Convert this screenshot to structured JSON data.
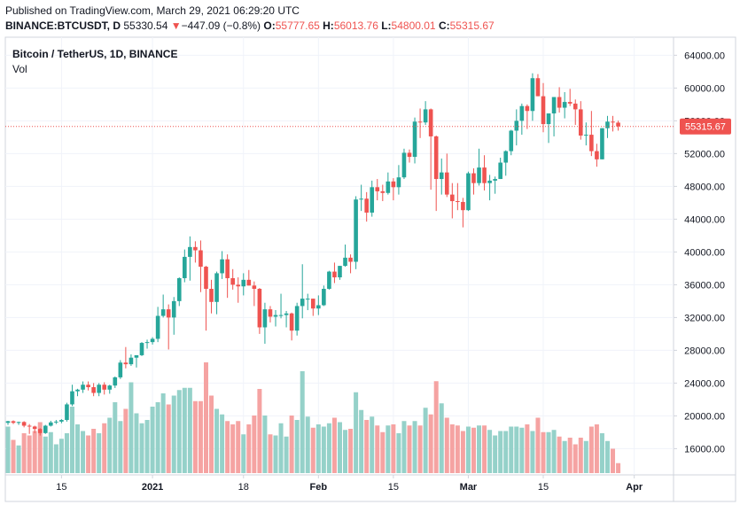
{
  "header": {
    "published": "Published on TradingView.com, March 29, 2021 06:29:20 UTC",
    "symbol": "BINANCE:BTCUSDT, D",
    "last": "55330.54",
    "change": "−447.09 (−0.8%)",
    "o_label": "O:",
    "o_value": "55777.65",
    "h_label": "H:",
    "h_value": "56013.76",
    "l_label": "L:",
    "l_value": "54800.01",
    "c_label": "C:",
    "c_value": "55315.67",
    "down_arrow": "▼"
  },
  "chart_title": "Bitcoin / TetherUS, 1D, BINANCE",
  "vol_label": "Vol",
  "colors": {
    "up": "#26a69a",
    "down": "#ef5350",
    "up_vol": "#95d1c9",
    "down_vol": "#f5a3a2",
    "last_price_line": "#ef5350",
    "grid": "#f0f3fa"
  },
  "chart_data": {
    "type": "candlestick",
    "y_range": [
      12800,
      66200
    ],
    "y_ticks": [
      "64000.00",
      "60000.00",
      "56000.00",
      "52000.00",
      "48000.00",
      "44000.00",
      "40000.00",
      "36000.00",
      "32000.00",
      "28000.00",
      "24000.00",
      "20000.00",
      "16000.00"
    ],
    "y_tick_values": [
      64000,
      60000,
      56000,
      52000,
      48000,
      44000,
      40000,
      36000,
      32000,
      28000,
      24000,
      20000,
      16000
    ],
    "x_ticks": [
      {
        "label": "15",
        "date": "2020-12-15",
        "bold": false
      },
      {
        "label": "2021",
        "date": "2021-01-01",
        "bold": true
      },
      {
        "label": "18",
        "date": "2021-01-18",
        "bold": false
      },
      {
        "label": "Feb",
        "date": "2021-02-01",
        "bold": true
      },
      {
        "label": "15",
        "date": "2021-02-15",
        "bold": false
      },
      {
        "label": "Mar",
        "date": "2021-03-01",
        "bold": true
      },
      {
        "label": "15",
        "date": "2021-03-15",
        "bold": false
      },
      {
        "label": "Apr",
        "date": "2021-04-01",
        "bold": true
      }
    ],
    "last_price": 55315.67,
    "last_price_label": "55315.67",
    "candles": [
      {
        "date": "2020-12-05",
        "o": 19150,
        "h": 19400,
        "l": 18900,
        "c": 19350
      },
      {
        "date": "2020-12-06",
        "o": 19350,
        "h": 19450,
        "l": 19000,
        "c": 19150
      },
      {
        "date": "2020-12-07",
        "o": 19150,
        "h": 19300,
        "l": 18900,
        "c": 19250
      },
      {
        "date": "2020-12-08",
        "o": 19250,
        "h": 19350,
        "l": 18600,
        "c": 18800
      },
      {
        "date": "2020-12-09",
        "o": 18800,
        "h": 19000,
        "l": 17800,
        "c": 18700
      },
      {
        "date": "2020-12-10",
        "o": 18700,
        "h": 18800,
        "l": 17900,
        "c": 18400
      },
      {
        "date": "2020-12-11",
        "o": 18400,
        "h": 18500,
        "l": 17600,
        "c": 17900
      },
      {
        "date": "2020-12-12",
        "o": 17900,
        "h": 18900,
        "l": 17800,
        "c": 18800
      },
      {
        "date": "2020-12-13",
        "o": 18800,
        "h": 19400,
        "l": 18700,
        "c": 19200
      },
      {
        "date": "2020-12-14",
        "o": 19200,
        "h": 19500,
        "l": 19000,
        "c": 19300
      },
      {
        "date": "2020-12-15",
        "o": 19300,
        "h": 19600,
        "l": 19100,
        "c": 19500
      },
      {
        "date": "2020-12-16",
        "o": 19500,
        "h": 21600,
        "l": 19300,
        "c": 21400
      },
      {
        "date": "2020-12-17",
        "o": 21400,
        "h": 23800,
        "l": 21200,
        "c": 23000
      },
      {
        "date": "2020-12-18",
        "o": 23000,
        "h": 23300,
        "l": 22400,
        "c": 23200
      },
      {
        "date": "2020-12-19",
        "o": 23200,
        "h": 24200,
        "l": 22800,
        "c": 23800
      },
      {
        "date": "2020-12-20",
        "o": 23800,
        "h": 24200,
        "l": 23100,
        "c": 23500
      },
      {
        "date": "2020-12-21",
        "o": 23500,
        "h": 24000,
        "l": 22400,
        "c": 22800
      },
      {
        "date": "2020-12-22",
        "o": 22800,
        "h": 24000,
        "l": 22400,
        "c": 23800
      },
      {
        "date": "2020-12-23",
        "o": 23800,
        "h": 24100,
        "l": 22600,
        "c": 23200
      },
      {
        "date": "2020-12-24",
        "o": 23200,
        "h": 23800,
        "l": 22700,
        "c": 23700
      },
      {
        "date": "2020-12-25",
        "o": 23700,
        "h": 24800,
        "l": 23400,
        "c": 24700
      },
      {
        "date": "2020-12-26",
        "o": 24700,
        "h": 26800,
        "l": 24500,
        "c": 26500
      },
      {
        "date": "2020-12-27",
        "o": 26500,
        "h": 28400,
        "l": 25800,
        "c": 26300
      },
      {
        "date": "2020-12-28",
        "o": 26300,
        "h": 27500,
        "l": 26100,
        "c": 27100
      },
      {
        "date": "2020-12-29",
        "o": 27100,
        "h": 27400,
        "l": 25900,
        "c": 27400
      },
      {
        "date": "2020-12-30",
        "o": 27400,
        "h": 29000,
        "l": 27300,
        "c": 28900
      },
      {
        "date": "2020-12-31",
        "o": 28900,
        "h": 29300,
        "l": 28200,
        "c": 29000
      },
      {
        "date": "2021-01-01",
        "o": 29000,
        "h": 29600,
        "l": 28700,
        "c": 29400
      },
      {
        "date": "2021-01-02",
        "o": 29400,
        "h": 33300,
        "l": 29000,
        "c": 32200
      },
      {
        "date": "2021-01-03",
        "o": 32200,
        "h": 34800,
        "l": 32000,
        "c": 33000
      },
      {
        "date": "2021-01-04",
        "o": 33000,
        "h": 33600,
        "l": 28100,
        "c": 32000
      },
      {
        "date": "2021-01-05",
        "o": 32000,
        "h": 34500,
        "l": 29900,
        "c": 34000
      },
      {
        "date": "2021-01-06",
        "o": 34000,
        "h": 36900,
        "l": 33400,
        "c": 36800
      },
      {
        "date": "2021-01-07",
        "o": 36800,
        "h": 40300,
        "l": 36300,
        "c": 39400
      },
      {
        "date": "2021-01-08",
        "o": 39400,
        "h": 41900,
        "l": 36500,
        "c": 40600
      },
      {
        "date": "2021-01-09",
        "o": 40600,
        "h": 41300,
        "l": 38700,
        "c": 40200
      },
      {
        "date": "2021-01-10",
        "o": 40200,
        "h": 41400,
        "l": 35100,
        "c": 38200
      },
      {
        "date": "2021-01-11",
        "o": 38200,
        "h": 38300,
        "l": 30400,
        "c": 35500
      },
      {
        "date": "2021-01-12",
        "o": 35500,
        "h": 36600,
        "l": 32500,
        "c": 33900
      },
      {
        "date": "2021-01-13",
        "o": 33900,
        "h": 37600,
        "l": 32400,
        "c": 37400
      },
      {
        "date": "2021-01-14",
        "o": 37400,
        "h": 40100,
        "l": 36700,
        "c": 39100
      },
      {
        "date": "2021-01-15",
        "o": 39100,
        "h": 39700,
        "l": 34400,
        "c": 36800
      },
      {
        "date": "2021-01-16",
        "o": 36800,
        "h": 37900,
        "l": 35400,
        "c": 36000
      },
      {
        "date": "2021-01-17",
        "o": 36000,
        "h": 36900,
        "l": 33800,
        "c": 35800
      },
      {
        "date": "2021-01-18",
        "o": 35800,
        "h": 37400,
        "l": 34700,
        "c": 36600
      },
      {
        "date": "2021-01-19",
        "o": 36600,
        "h": 37800,
        "l": 35900,
        "c": 35900
      },
      {
        "date": "2021-01-20",
        "o": 35900,
        "h": 36400,
        "l": 33400,
        "c": 35500
      },
      {
        "date": "2021-01-21",
        "o": 35500,
        "h": 35600,
        "l": 30000,
        "c": 30800
      },
      {
        "date": "2021-01-22",
        "o": 30800,
        "h": 33800,
        "l": 28800,
        "c": 33000
      },
      {
        "date": "2021-01-23",
        "o": 33000,
        "h": 33400,
        "l": 31400,
        "c": 32100
      },
      {
        "date": "2021-01-24",
        "o": 32100,
        "h": 32900,
        "l": 30900,
        "c": 32300
      },
      {
        "date": "2021-01-25",
        "o": 32300,
        "h": 34900,
        "l": 31900,
        "c": 32300
      },
      {
        "date": "2021-01-26",
        "o": 32300,
        "h": 32800,
        "l": 30800,
        "c": 32500
      },
      {
        "date": "2021-01-27",
        "o": 32500,
        "h": 32600,
        "l": 29200,
        "c": 30400
      },
      {
        "date": "2021-01-28",
        "o": 30400,
        "h": 33800,
        "l": 29800,
        "c": 33400
      },
      {
        "date": "2021-01-29",
        "o": 33400,
        "h": 38500,
        "l": 31900,
        "c": 34300
      },
      {
        "date": "2021-01-30",
        "o": 34300,
        "h": 34900,
        "l": 32900,
        "c": 34300
      },
      {
        "date": "2021-01-31",
        "o": 34300,
        "h": 34300,
        "l": 32200,
        "c": 33100
      },
      {
        "date": "2021-02-01",
        "o": 33100,
        "h": 34700,
        "l": 32300,
        "c": 33500
      },
      {
        "date": "2021-02-02",
        "o": 33500,
        "h": 35900,
        "l": 33400,
        "c": 35500
      },
      {
        "date": "2021-02-03",
        "o": 35500,
        "h": 37700,
        "l": 35400,
        "c": 37600
      },
      {
        "date": "2021-02-04",
        "o": 37600,
        "h": 38700,
        "l": 36200,
        "c": 36900
      },
      {
        "date": "2021-02-05",
        "o": 36900,
        "h": 38300,
        "l": 36600,
        "c": 38300
      },
      {
        "date": "2021-02-06",
        "o": 38300,
        "h": 40900,
        "l": 38200,
        "c": 39300
      },
      {
        "date": "2021-02-07",
        "o": 39300,
        "h": 39700,
        "l": 37400,
        "c": 38800
      },
      {
        "date": "2021-02-08",
        "o": 38800,
        "h": 46800,
        "l": 37900,
        "c": 46400
      },
      {
        "date": "2021-02-09",
        "o": 46400,
        "h": 48200,
        "l": 45000,
        "c": 46500
      },
      {
        "date": "2021-02-10",
        "o": 46500,
        "h": 47300,
        "l": 43700,
        "c": 44800
      },
      {
        "date": "2021-02-11",
        "o": 44800,
        "h": 48700,
        "l": 44300,
        "c": 47900
      },
      {
        "date": "2021-02-12",
        "o": 47900,
        "h": 48900,
        "l": 46300,
        "c": 47400
      },
      {
        "date": "2021-02-13",
        "o": 47400,
        "h": 48200,
        "l": 46200,
        "c": 47200
      },
      {
        "date": "2021-02-14",
        "o": 47200,
        "h": 49700,
        "l": 47000,
        "c": 48600
      },
      {
        "date": "2021-02-15",
        "o": 48600,
        "h": 49000,
        "l": 46300,
        "c": 47900
      },
      {
        "date": "2021-02-16",
        "o": 47900,
        "h": 50600,
        "l": 47000,
        "c": 49100
      },
      {
        "date": "2021-02-17",
        "o": 49100,
        "h": 52600,
        "l": 48900,
        "c": 52100
      },
      {
        "date": "2021-02-18",
        "o": 52100,
        "h": 52500,
        "l": 50900,
        "c": 51600
      },
      {
        "date": "2021-02-19",
        "o": 51600,
        "h": 56400,
        "l": 50800,
        "c": 55900
      },
      {
        "date": "2021-02-20",
        "o": 55900,
        "h": 57500,
        "l": 53900,
        "c": 55800
      },
      {
        "date": "2021-02-21",
        "o": 55800,
        "h": 58400,
        "l": 55500,
        "c": 57400
      },
      {
        "date": "2021-02-22",
        "o": 57400,
        "h": 57500,
        "l": 47600,
        "c": 54100
      },
      {
        "date": "2021-02-23",
        "o": 54100,
        "h": 54200,
        "l": 45000,
        "c": 48900
      },
      {
        "date": "2021-02-24",
        "o": 48900,
        "h": 51400,
        "l": 47000,
        "c": 49700
      },
      {
        "date": "2021-02-25",
        "o": 49700,
        "h": 52000,
        "l": 46700,
        "c": 47000
      },
      {
        "date": "2021-02-26",
        "o": 47000,
        "h": 48400,
        "l": 44100,
        "c": 46200
      },
      {
        "date": "2021-02-27",
        "o": 46200,
        "h": 48400,
        "l": 45100,
        "c": 46100
      },
      {
        "date": "2021-02-28",
        "o": 46100,
        "h": 46600,
        "l": 43000,
        "c": 45100
      },
      {
        "date": "2021-03-01",
        "o": 45100,
        "h": 49800,
        "l": 45000,
        "c": 49600
      },
      {
        "date": "2021-03-02",
        "o": 49600,
        "h": 50200,
        "l": 47000,
        "c": 48400
      },
      {
        "date": "2021-03-03",
        "o": 48400,
        "h": 52600,
        "l": 48100,
        "c": 50300
      },
      {
        "date": "2021-03-04",
        "o": 50300,
        "h": 51800,
        "l": 47500,
        "c": 48400
      },
      {
        "date": "2021-03-05",
        "o": 48400,
        "h": 49400,
        "l": 46300,
        "c": 48700
      },
      {
        "date": "2021-03-06",
        "o": 48700,
        "h": 49200,
        "l": 47100,
        "c": 48900
      },
      {
        "date": "2021-03-07",
        "o": 48900,
        "h": 51500,
        "l": 48900,
        "c": 50900
      },
      {
        "date": "2021-03-08",
        "o": 50900,
        "h": 52400,
        "l": 49300,
        "c": 52300
      },
      {
        "date": "2021-03-09",
        "o": 52300,
        "h": 54900,
        "l": 51800,
        "c": 54800
      },
      {
        "date": "2021-03-10",
        "o": 54800,
        "h": 57400,
        "l": 53000,
        "c": 56000
      },
      {
        "date": "2021-03-11",
        "o": 56000,
        "h": 58100,
        "l": 54300,
        "c": 57800
      },
      {
        "date": "2021-03-12",
        "o": 57800,
        "h": 58000,
        "l": 55000,
        "c": 57200
      },
      {
        "date": "2021-03-13",
        "o": 57200,
        "h": 61800,
        "l": 56000,
        "c": 61200
      },
      {
        "date": "2021-03-14",
        "o": 61200,
        "h": 61700,
        "l": 59000,
        "c": 59000
      },
      {
        "date": "2021-03-15",
        "o": 59000,
        "h": 60600,
        "l": 54600,
        "c": 55600
      },
      {
        "date": "2021-03-16",
        "o": 55600,
        "h": 56900,
        "l": 53300,
        "c": 56900
      },
      {
        "date": "2021-03-17",
        "o": 56900,
        "h": 58900,
        "l": 54100,
        "c": 58900
      },
      {
        "date": "2021-03-18",
        "o": 58900,
        "h": 60100,
        "l": 57000,
        "c": 57600
      },
      {
        "date": "2021-03-19",
        "o": 57600,
        "h": 59500,
        "l": 56300,
        "c": 58300
      },
      {
        "date": "2021-03-20",
        "o": 58300,
        "h": 59900,
        "l": 57800,
        "c": 58100
      },
      {
        "date": "2021-03-21",
        "o": 58100,
        "h": 58600,
        "l": 55500,
        "c": 57400
      },
      {
        "date": "2021-03-22",
        "o": 57400,
        "h": 58400,
        "l": 53700,
        "c": 54200
      },
      {
        "date": "2021-03-23",
        "o": 54200,
        "h": 55800,
        "l": 53000,
        "c": 54300
      },
      {
        "date": "2021-03-24",
        "o": 54300,
        "h": 57200,
        "l": 51700,
        "c": 52300
      },
      {
        "date": "2021-03-25",
        "o": 52300,
        "h": 53200,
        "l": 50400,
        "c": 51300
      },
      {
        "date": "2021-03-26",
        "o": 51300,
        "h": 55100,
        "l": 51300,
        "c": 55100
      },
      {
        "date": "2021-03-27",
        "o": 55100,
        "h": 56600,
        "l": 53900,
        "c": 55900
      },
      {
        "date": "2021-03-28",
        "o": 55900,
        "h": 56600,
        "l": 54700,
        "c": 55800
      },
      {
        "date": "2021-03-29",
        "o": 55777.65,
        "h": 56013.76,
        "l": 54800.01,
        "c": 55315.67
      }
    ],
    "volume_relative": [
      0.42,
      0.3,
      0.25,
      0.36,
      0.34,
      0.38,
      0.46,
      0.33,
      0.37,
      0.26,
      0.31,
      0.36,
      0.6,
      0.44,
      0.38,
      0.34,
      0.4,
      0.36,
      0.45,
      0.5,
      0.64,
      0.47,
      0.58,
      0.82,
      0.54,
      0.45,
      0.48,
      0.6,
      0.64,
      0.72,
      0.62,
      0.7,
      0.75,
      0.77,
      0.77,
      0.65,
      0.65,
      1.0,
      0.7,
      0.58,
      0.53,
      0.47,
      0.44,
      0.47,
      0.35,
      0.44,
      0.52,
      0.76,
      0.52,
      0.35,
      0.34,
      0.45,
      0.33,
      0.52,
      0.48,
      0.92,
      0.51,
      0.41,
      0.44,
      0.42,
      0.45,
      0.5,
      0.46,
      0.39,
      0.4,
      0.73,
      0.57,
      0.48,
      0.51,
      0.43,
      0.37,
      0.43,
      0.44,
      0.36,
      0.47,
      0.43,
      0.47,
      0.43,
      0.59,
      0.53,
      0.83,
      0.63,
      0.5,
      0.44,
      0.43,
      0.38,
      0.42,
      0.41,
      0.43,
      0.43,
      0.39,
      0.34,
      0.38,
      0.38,
      0.42,
      0.42,
      0.41,
      0.44,
      0.38,
      0.5,
      0.37,
      0.37,
      0.39,
      0.33,
      0.29,
      0.32,
      0.26,
      0.32,
      0.29,
      0.42,
      0.44,
      0.36,
      0.29,
      0.22,
      0.09
    ]
  }
}
